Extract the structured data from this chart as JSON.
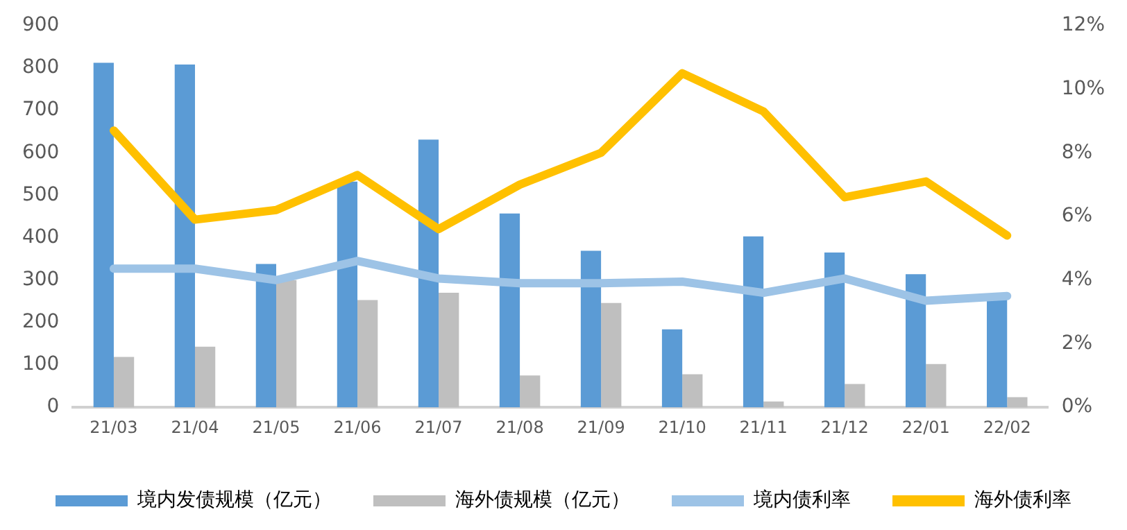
{
  "chart_data": {
    "type": "bar",
    "categories": [
      "21/03",
      "21/04",
      "21/05",
      "21/06",
      "21/07",
      "21/08",
      "21/09",
      "21/10",
      "21/11",
      "21/12",
      "22/01",
      "22/02"
    ],
    "series": [
      {
        "name": "境内发债规模（亿元）",
        "color": "#5b9bd5",
        "values": [
          812,
          808,
          338,
          532,
          631,
          457,
          369,
          184,
          403,
          365,
          314,
          266
        ]
      },
      {
        "name": "海外债规模（亿元）",
        "color": "#bfbfbf",
        "values": [
          119,
          143,
          300,
          253,
          270,
          75,
          246,
          78,
          14,
          55,
          102,
          24
        ]
      },
      {
        "name": "境内债利率",
        "type": "line",
        "axis": "y2",
        "color": "#9dc3e6",
        "values": [
          4.36,
          4.36,
          4.0,
          4.6,
          4.05,
          3.9,
          3.9,
          3.95,
          3.6,
          4.05,
          3.35,
          3.5
        ]
      },
      {
        "name": "海外债利率",
        "type": "line",
        "axis": "y2",
        "color": "#ffc000",
        "values": [
          8.7,
          5.9,
          6.2,
          7.3,
          5.6,
          7.0,
          8.0,
          10.5,
          9.3,
          6.6,
          7.1,
          5.4
        ]
      }
    ],
    "ylim": [
      0,
      900
    ],
    "yticks": [
      0,
      100,
      200,
      300,
      400,
      500,
      600,
      700,
      800,
      900
    ],
    "y2lim": [
      0,
      12
    ],
    "y2ticks": [
      {
        "value": 0,
        "label": "0%"
      },
      {
        "value": 2,
        "label": "2%"
      },
      {
        "value": 4,
        "label": "4%"
      },
      {
        "value": 6,
        "label": "6%"
      },
      {
        "value": 8,
        "label": "8%"
      },
      {
        "value": 10,
        "label": "10%"
      },
      {
        "value": 12,
        "label": "12%"
      }
    ],
    "grid": false,
    "legend": "bottom",
    "marker": "none"
  }
}
